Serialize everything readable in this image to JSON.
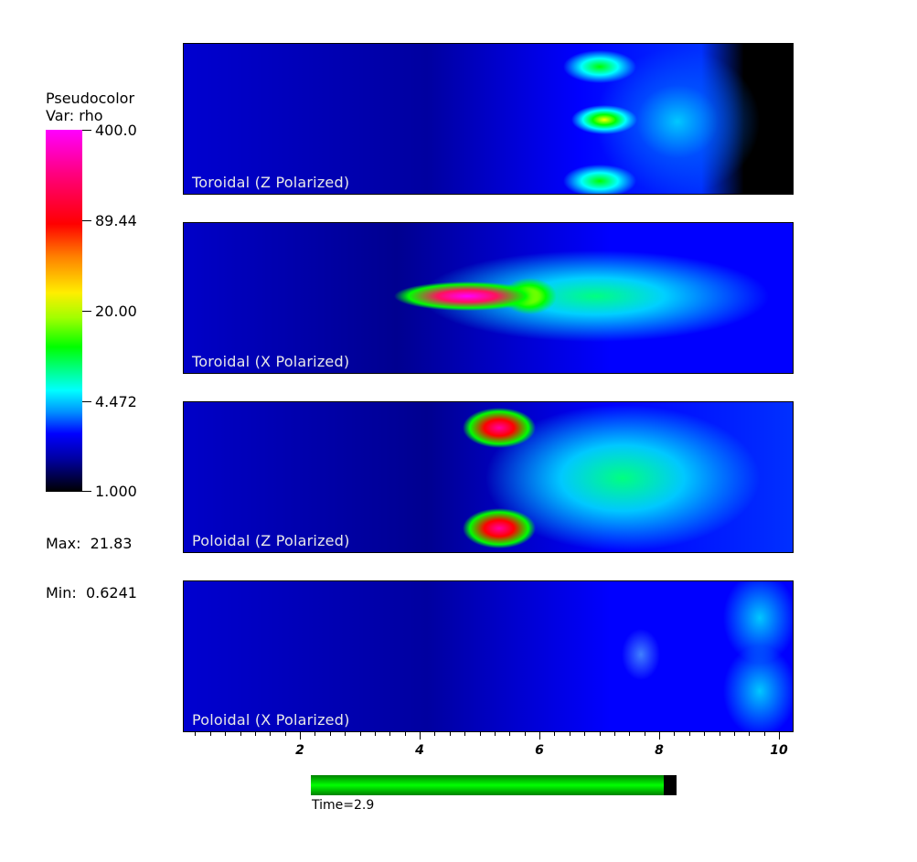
{
  "legend": {
    "title_line1": "Pseudocolor",
    "title_line2": "Var: rho",
    "ticks": [
      "400.0",
      "89.44",
      "20.00",
      "4.472",
      "1.000"
    ],
    "max_label": "Max:  21.83",
    "min_label": "Min:  0.6241",
    "colors": [
      "#ff00ff",
      "#ff0000",
      "#ffff00",
      "#00ff00",
      "#00ffff",
      "#0000ff",
      "#000000"
    ]
  },
  "panels": [
    {
      "label": "Toroidal (Z Polarized)"
    },
    {
      "label": "Toroidal (X Polarized)"
    },
    {
      "label": "Poloidal (Z Polarized)"
    },
    {
      "label": "Poloidal (X Polarized)"
    }
  ],
  "x_axis": {
    "ticks": [
      "2",
      "4",
      "6",
      "8",
      "10"
    ],
    "range": [
      0,
      10.25
    ]
  },
  "time": {
    "label": "Time=2.9",
    "progress": 0.965
  }
}
